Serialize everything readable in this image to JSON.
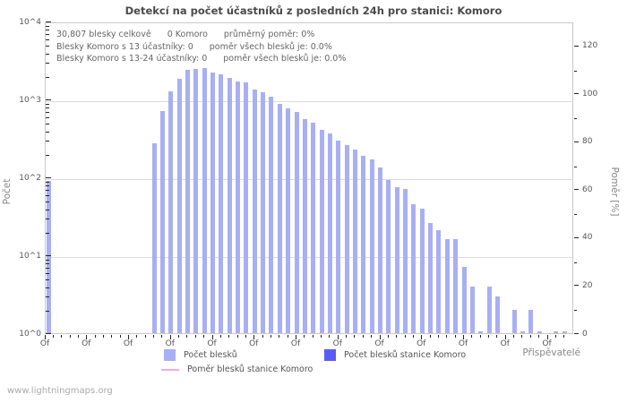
{
  "title": "Detekcí na počet účastníků z posledních 24h pro stanici: Komoro",
  "annotation": {
    "line1": [
      "30,807 blesky celkově",
      "0 Komoro",
      "průměrný poměr: 0%"
    ],
    "line2": [
      "Blesky Komoro s 13 účastníky: 0",
      "poměr všech blesků je: 0.0%"
    ],
    "line3": [
      "Blesky Komoro s 13-24 účastníky: 0",
      "poměr všech blesků je: 0.0%"
    ]
  },
  "legend": {
    "items": [
      {
        "label": "Počet blesků",
        "color": "#a9aff3",
        "type": "square"
      },
      {
        "label": "Počet blesků stanice Komoro",
        "color": "#5a5cf7",
        "type": "square"
      },
      {
        "label": "Poměr blesků stanice Komoro",
        "color": "#f2aade",
        "type": "line"
      }
    ]
  },
  "footer": "www.lightningmaps.org",
  "colors": {
    "bar": "#a9aff3",
    "station_bar": "#5a5cf7",
    "ratio_line": "#f2aade",
    "grid": "#dcdcdc",
    "border": "#c9c9c9"
  },
  "chart_data": {
    "type": "bar",
    "title": "Detekcí na počet účastníků z posledních 24h pro stanici: Komoro",
    "ylabel_left": "Počet",
    "ylabel_right": "Poměr [%]",
    "xlabel": "Přispěvatelé",
    "y_scale_left": "log",
    "ylim_left": [
      1,
      10000
    ],
    "y_ticks_left": [
      "10^0",
      "10^1",
      "10^2",
      "10^3",
      "10^4"
    ],
    "ylim_right": [
      0,
      130
    ],
    "y_ticks_right": [
      0,
      20,
      40,
      60,
      80,
      100,
      120
    ],
    "grid": "horizontal-decades",
    "legend_position": "bottom",
    "x_unit": "participants-per-flash-bin",
    "x_tick_labels": [
      "Of",
      "Of",
      "Of",
      "Of",
      "Of",
      "Of",
      "Of",
      "Of",
      "Of",
      "Of",
      "Of",
      "Of",
      "Of"
    ],
    "x_major_every": 5,
    "n_positions": 63,
    "series": [
      {
        "name": "Počet blesků",
        "values": [
          90,
          0,
          0,
          0,
          0,
          0,
          0,
          0,
          0,
          0,
          0,
          0,
          0,
          275,
          710,
          1280,
          1830,
          2400,
          2430,
          2550,
          2240,
          2100,
          1870,
          1710,
          1640,
          1350,
          1240,
          1070,
          880,
          760,
          690,
          555,
          505,
          405,
          363,
          298,
          257,
          229,
          189,
          168,
          135,
          93,
          75,
          71,
          45,
          40,
          26,
          21,
          16,
          16,
          7,
          4,
          1,
          4,
          3,
          0,
          2,
          1,
          2,
          1,
          0,
          1,
          1
        ]
      },
      {
        "name": "Počet blesků stanice Komoro",
        "values_all_zero": true
      },
      {
        "name": "Poměr blesků stanice Komoro",
        "values_all_zero": true
      }
    ],
    "stats": {
      "total_flashes": "30,807",
      "station_flashes": 0,
      "average_ratio_pct": 0
    }
  }
}
